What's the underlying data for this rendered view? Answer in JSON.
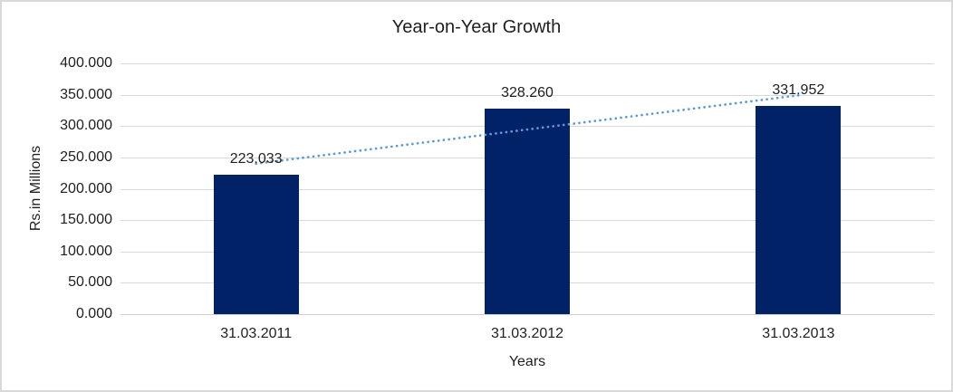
{
  "chart_data": {
    "type": "bar",
    "title": "Year-on-Year Growth",
    "xlabel": "Years",
    "ylabel": "Rs.in Millions",
    "categories": [
      "31.03.2011",
      "31.03.2012",
      "31.03.2013"
    ],
    "values": [
      223.033,
      328.26,
      331.952
    ],
    "data_labels": [
      "223.033",
      "328.260",
      "331.952"
    ],
    "ylim": [
      0,
      400
    ],
    "ytick_step": 50,
    "ytick_labels": [
      "0.000",
      "50.000",
      "100.000",
      "150.000",
      "200.000",
      "250.000",
      "300.000",
      "350.000",
      "400.000"
    ],
    "grid": true,
    "legend": "none",
    "trendline": {
      "type": "linear",
      "style": "dotted",
      "start_value": 240,
      "end_value": 349
    },
    "colors": {
      "bar": "#012266",
      "trendline": "#5b9bd5",
      "gridline": "#d9d9d9",
      "axis_line": "#d0d0d0",
      "text": "#1f1f1f",
      "background": "#ffffff",
      "border": "#d9d9d9"
    }
  }
}
